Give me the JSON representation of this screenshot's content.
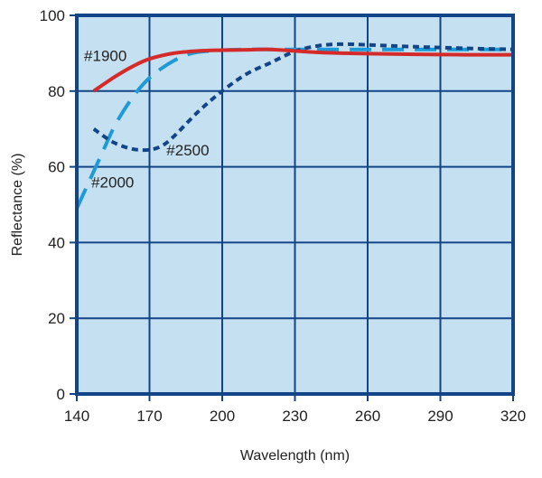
{
  "chart_data": {
    "type": "line",
    "xlabel": "Wavelength (nm)",
    "ylabel": "Reflectance (%)",
    "xlim": [
      140,
      320
    ],
    "ylim": [
      0,
      100
    ],
    "xticks": [
      140,
      170,
      200,
      230,
      260,
      290,
      320
    ],
    "yticks": [
      0,
      20,
      40,
      60,
      80,
      100
    ],
    "grid": true,
    "colors": {
      "plot_background": "#c5e0f1",
      "frame": "#124587",
      "grid": "#124587"
    },
    "series": [
      {
        "name": "#1900",
        "color": "#d42a2a",
        "dash": "solid",
        "x": [
          147,
          155,
          163,
          170,
          180,
          190,
          200,
          210,
          220,
          230,
          240,
          250,
          260,
          280,
          300,
          320
        ],
        "y": [
          80,
          83.5,
          86.5,
          88.5,
          90,
          90.6,
          90.8,
          90.9,
          91,
          90.6,
          90.2,
          90,
          89.9,
          89.7,
          89.6,
          89.6
        ]
      },
      {
        "name": "#2000",
        "color": "#1e9bd6",
        "dash": "long-dash",
        "x": [
          140,
          145,
          150,
          155,
          160,
          165,
          170,
          175,
          180,
          185,
          190,
          200,
          210,
          220,
          230,
          240,
          260,
          280,
          300,
          320
        ],
        "y": [
          49,
          56,
          63,
          70,
          75.5,
          80,
          83.5,
          86,
          88,
          89.5,
          90.3,
          90.8,
          91,
          91,
          91,
          91,
          91,
          91,
          91,
          91
        ]
      },
      {
        "name": "#2500",
        "color": "#124587",
        "dash": "dotted",
        "x": [
          147,
          155,
          163,
          170,
          175,
          180,
          190,
          200,
          210,
          220,
          230,
          240,
          250,
          260,
          280,
          300,
          320
        ],
        "y": [
          70,
          66.5,
          64.7,
          64.5,
          65.5,
          68,
          74.5,
          80,
          84.5,
          87.5,
          90.5,
          92,
          92.4,
          92.2,
          91.7,
          91.3,
          91
        ]
      }
    ],
    "annotations": [
      {
        "text": "#1900",
        "x": 143,
        "y": 88,
        "series": "#1900"
      },
      {
        "text": "#2500",
        "x": 177,
        "y": 63,
        "series": "#2500"
      },
      {
        "text": "#2000",
        "x": 146,
        "y": 54.5,
        "series": "#2000"
      }
    ]
  }
}
